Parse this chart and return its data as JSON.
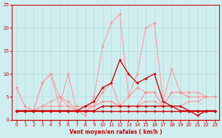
{
  "bg_color": "#d0eef0",
  "grid_color": "#b0d8dc",
  "line_color_dark": "#cc0000",
  "line_color_light": "#ff9999",
  "marker_color_dark": "#cc0000",
  "marker_color_light": "#ff8888",
  "xlabel": "Vent moyen/en rafales ( km/h )",
  "xlabel_color": "#cc0000",
  "xlim": [
    0,
    23
  ],
  "ylim": [
    0,
    25
  ],
  "yticks": [
    0,
    5,
    10,
    15,
    20,
    25
  ],
  "xticks": [
    0,
    1,
    2,
    3,
    4,
    5,
    6,
    7,
    8,
    9,
    10,
    11,
    12,
    13,
    14,
    15,
    16,
    17,
    18,
    19,
    20,
    21,
    22,
    23
  ],
  "series_light": [
    [
      7,
      3,
      2,
      8,
      10,
      3,
      10,
      2,
      1,
      5,
      16,
      21,
      23,
      5,
      10,
      20,
      21,
      4,
      11,
      6,
      6,
      6,
      5,
      5
    ],
    [
      7,
      3,
      2,
      8,
      10,
      5,
      3,
      3,
      3,
      3,
      6,
      8,
      3,
      5,
      7,
      6,
      6,
      3,
      6,
      6,
      5,
      5,
      5,
      5
    ],
    [
      2,
      2,
      2,
      3,
      4,
      5,
      4,
      2,
      3,
      3,
      4,
      4,
      3,
      3,
      3,
      6,
      6,
      3,
      6,
      6,
      5,
      5,
      5,
      5
    ],
    [
      2,
      2,
      2,
      3,
      3,
      3,
      3,
      2,
      2,
      3,
      4,
      4,
      3,
      3,
      3,
      4,
      4,
      3,
      3,
      3,
      4,
      4,
      5,
      5
    ]
  ],
  "series_dark": [
    [
      2,
      2,
      2,
      2,
      2,
      2,
      2,
      2,
      2,
      2,
      2,
      2,
      2,
      2,
      2,
      2,
      2,
      2,
      2,
      2,
      2,
      2,
      2,
      2
    ],
    [
      2,
      2,
      2,
      2,
      2,
      2,
      2,
      2,
      3,
      4,
      7,
      8,
      13,
      10,
      8,
      9,
      10,
      4,
      3,
      3,
      2,
      1,
      2,
      2
    ],
    [
      2,
      2,
      2,
      2,
      2,
      2,
      2,
      2,
      2,
      2,
      3,
      3,
      3,
      3,
      3,
      3,
      3,
      3,
      3,
      2,
      2,
      2,
      2,
      2
    ]
  ]
}
